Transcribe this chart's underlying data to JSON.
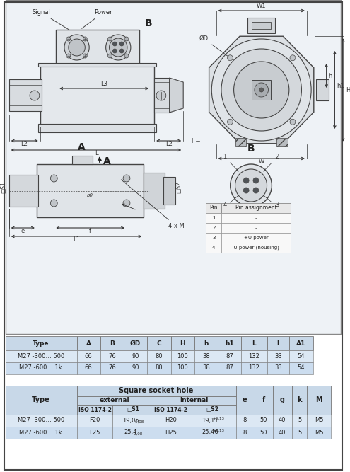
{
  "bg_color": "#ffffff",
  "drawing_bg": "#eef2f6",
  "border_color": "#444444",
  "line_color": "#444444",
  "dim_color": "#333333",
  "table1_header_bg": "#c8d8e8",
  "table2_header_bg": "#c8d8e8",
  "table_row1_bg": "#dce8f4",
  "table_row2_bg": "#ccddef",
  "pin_table_header_bg": "#e8e8e8",
  "pin_table_row_bg": "#f8f8f8",
  "table1_headers": [
    "Type",
    "A",
    "B",
    "ØD",
    "C",
    "H",
    "h",
    "h1",
    "L",
    "l",
    "A1"
  ],
  "table1_row1": [
    "M27 -300… 500",
    "66",
    "76",
    "90",
    "80",
    "100",
    "38",
    "87",
    "132",
    "33",
    "54"
  ],
  "table1_row2": [
    "M27 -600… 1k",
    "66",
    "76",
    "90",
    "80",
    "100",
    "38",
    "87",
    "132",
    "33",
    "54"
  ],
  "pin_table_headers": [
    "Pin",
    "Pin assignment"
  ],
  "pin_rows": [
    [
      "1",
      "-"
    ],
    [
      "2",
      "-"
    ],
    [
      "3",
      "+U power"
    ],
    [
      "4",
      "-U power (housing)"
    ]
  ]
}
